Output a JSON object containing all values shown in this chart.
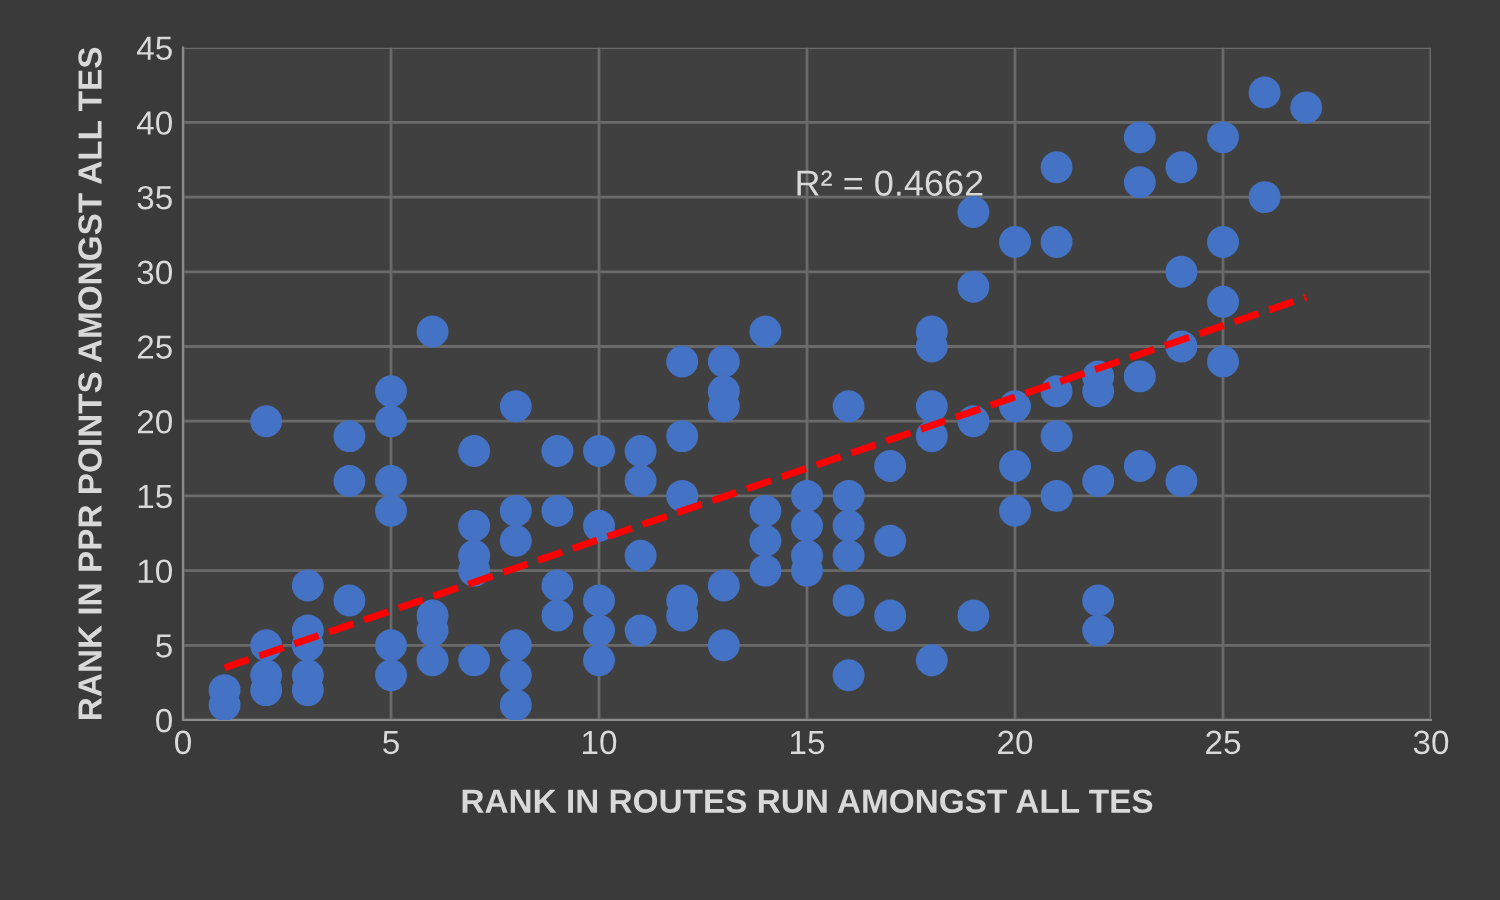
{
  "chart_data": {
    "type": "scatter",
    "xlabel": "RANK IN ROUTES RUN AMONGST ALL TES",
    "ylabel": "RANK IN PPR POINTS AMONGST ALL TES",
    "xlim": [
      0,
      30
    ],
    "xticks": [
      0,
      5,
      10,
      15,
      20,
      25,
      30
    ],
    "ylim": [
      0,
      45
    ],
    "yticks": [
      0,
      5,
      10,
      15,
      20,
      25,
      30,
      35,
      40,
      45
    ],
    "grid": true,
    "annotations": [
      "R² = 0.4662"
    ],
    "series": [
      {
        "color": "#4472c4",
        "marker": "circle",
        "x": [
          1,
          1,
          2,
          2,
          2,
          2,
          3,
          3,
          3,
          3,
          3,
          4,
          4,
          4,
          5,
          5,
          5,
          5,
          5,
          5,
          6,
          6,
          6,
          6,
          7,
          7,
          7,
          7,
          7,
          8,
          8,
          8,
          8,
          8,
          8,
          9,
          9,
          9,
          9,
          10,
          10,
          10,
          10,
          10,
          11,
          11,
          11,
          11,
          12,
          12,
          12,
          12,
          12,
          13,
          13,
          13,
          13,
          13,
          14,
          14,
          14,
          14,
          15,
          15,
          15,
          15,
          16,
          16,
          16,
          16,
          16,
          16,
          17,
          17,
          17,
          18,
          18,
          18,
          18,
          18,
          19,
          19,
          19,
          19,
          20,
          20,
          20,
          20,
          21,
          21,
          21,
          21,
          21,
          22,
          22,
          22,
          22,
          22,
          23,
          23,
          23,
          23,
          24,
          24,
          24,
          24,
          25,
          25,
          25,
          25,
          26,
          26,
          27
        ],
        "values": [
          2,
          1,
          20,
          5,
          3,
          2,
          9,
          6,
          5,
          3,
          2,
          19,
          16,
          8,
          22,
          20,
          16,
          14,
          5,
          3,
          26,
          7,
          6,
          4,
          18,
          13,
          11,
          10,
          4,
          21,
          14,
          12,
          5,
          3,
          1,
          18,
          14,
          9,
          7,
          18,
          13,
          8,
          6,
          4,
          18,
          16,
          11,
          6,
          24,
          19,
          15,
          8,
          7,
          24,
          22,
          21,
          9,
          5,
          26,
          14,
          12,
          10,
          15,
          13,
          11,
          10,
          21,
          15,
          13,
          11,
          8,
          3,
          17,
          12,
          7,
          26,
          25,
          21,
          19,
          4,
          34,
          29,
          20,
          7,
          32,
          21,
          17,
          14,
          37,
          32,
          22,
          19,
          15,
          23,
          22,
          16,
          8,
          6,
          39,
          36,
          23,
          17,
          37,
          30,
          25,
          16,
          39,
          32,
          28,
          24,
          42,
          35,
          41
        ]
      },
      {
        "type": "line",
        "color": "#ff0000",
        "line_style": "dashed",
        "x": [
          1,
          27
        ],
        "values": [
          3.5,
          28.3
        ]
      }
    ]
  }
}
